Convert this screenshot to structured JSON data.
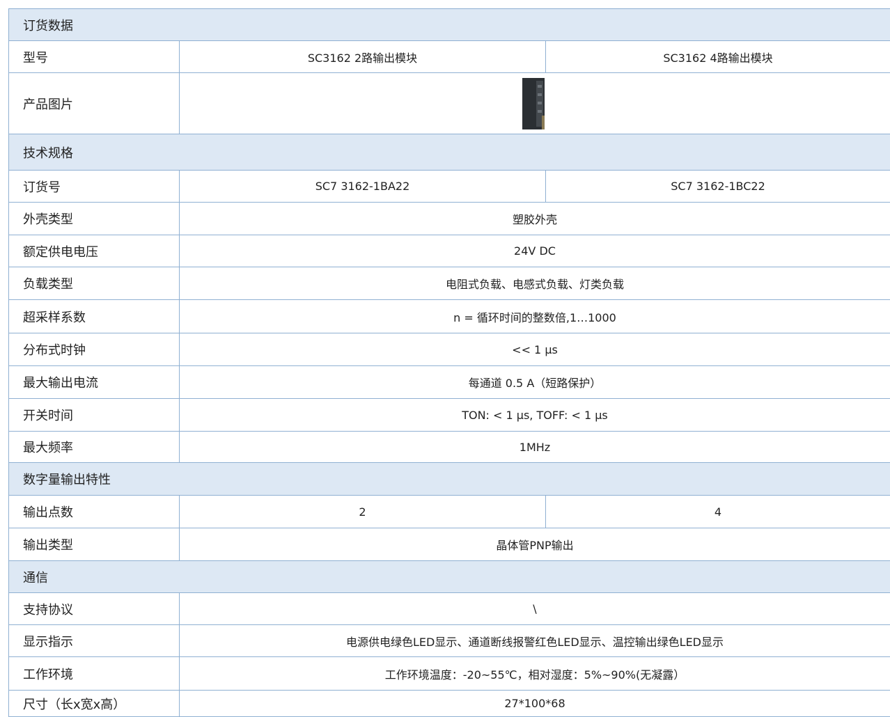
{
  "sections": [
    {
      "title": "订货数据",
      "rows": [
        {
          "label": "型号",
          "cells": [
            "SC3162 2路输出模块",
            "SC3162 4路输出模块"
          ]
        },
        {
          "label": "产品图片",
          "cells": []
        }
      ]
    },
    {
      "title": "技术规格",
      "rows": [
        {
          "label": "订货号",
          "cells": [
            "SC7 3162-1BA22",
            "SC7 3162-1BC22"
          ]
        },
        {
          "label": "外壳类型",
          "cells": [
            "塑胶外壳"
          ]
        },
        {
          "label": "额定供电电压",
          "cells": [
            "24V DC"
          ]
        },
        {
          "label": "负载类型",
          "cells": [
            "电阻式负载、电感式负载、灯类负载"
          ]
        },
        {
          "label": "超采样系数",
          "cells": [
            "n = 循环时间的整数倍,1…1000"
          ]
        },
        {
          "label": "分布式时钟",
          "cells": [
            "<< 1 µs"
          ]
        },
        {
          "label": "最大输出电流",
          "cells": [
            "每通道 0.5 A（短路保护）"
          ]
        },
        {
          "label": "开关时间",
          "cells": [
            "TON: < 1 µs, TOFF: < 1 µs"
          ]
        },
        {
          "label": "最大频率",
          "cells": [
            "1MHz"
          ]
        }
      ]
    },
    {
      "title": "数字量输出特性",
      "rows": [
        {
          "label": "输出点数",
          "cells": [
            "2",
            "4"
          ]
        },
        {
          "label": "输出类型",
          "cells": [
            "晶体管PNP输出"
          ]
        }
      ]
    },
    {
      "title": "通信",
      "rows": [
        {
          "label": "支持协议",
          "cells": [
            "\\"
          ]
        },
        {
          "label": "显示指示",
          "cells": [
            "电源供电绿色LED显示、通道断线报警红色LED显示、温控输出绿色LED显示"
          ]
        },
        {
          "label": "工作环境",
          "cells": [
            "工作环境温度：-20~55℃，相对湿度：5%~90%(无凝露）"
          ]
        },
        {
          "label": "尺寸（长x宽x高）",
          "cells": [
            "27*100*68"
          ]
        }
      ]
    }
  ]
}
